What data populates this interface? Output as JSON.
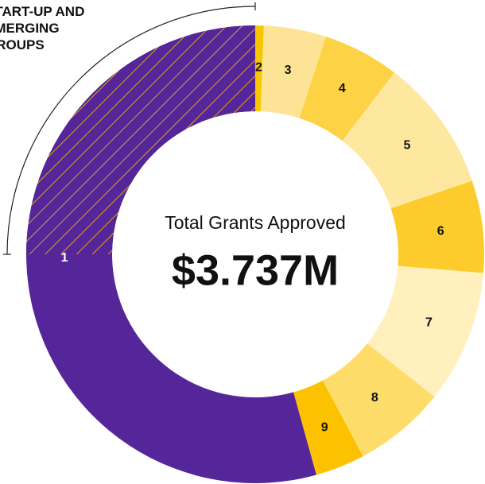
{
  "chart_data": {
    "type": "donut",
    "center_title": "Total Grants Approved",
    "center_value": "$3.737M",
    "categories": [
      "2",
      "3",
      "4",
      "5",
      "6",
      "7",
      "8",
      "9",
      "1"
    ],
    "values": [
      0.6,
      4.4,
      5.4,
      9.4,
      6.5,
      9.4,
      6.5,
      3.5,
      54.3
    ],
    "colors": [
      "#f7c600",
      "#fde395",
      "#fdd244",
      "#fee79f",
      "#fdcb2c",
      "#fff0bd",
      "#fedc6a",
      "#fcc200",
      "#55259a"
    ],
    "highlight": {
      "label": "START-UP AND EMERGING GROUPS",
      "value": 25,
      "category": "1",
      "color": "#f7c600"
    }
  }
}
